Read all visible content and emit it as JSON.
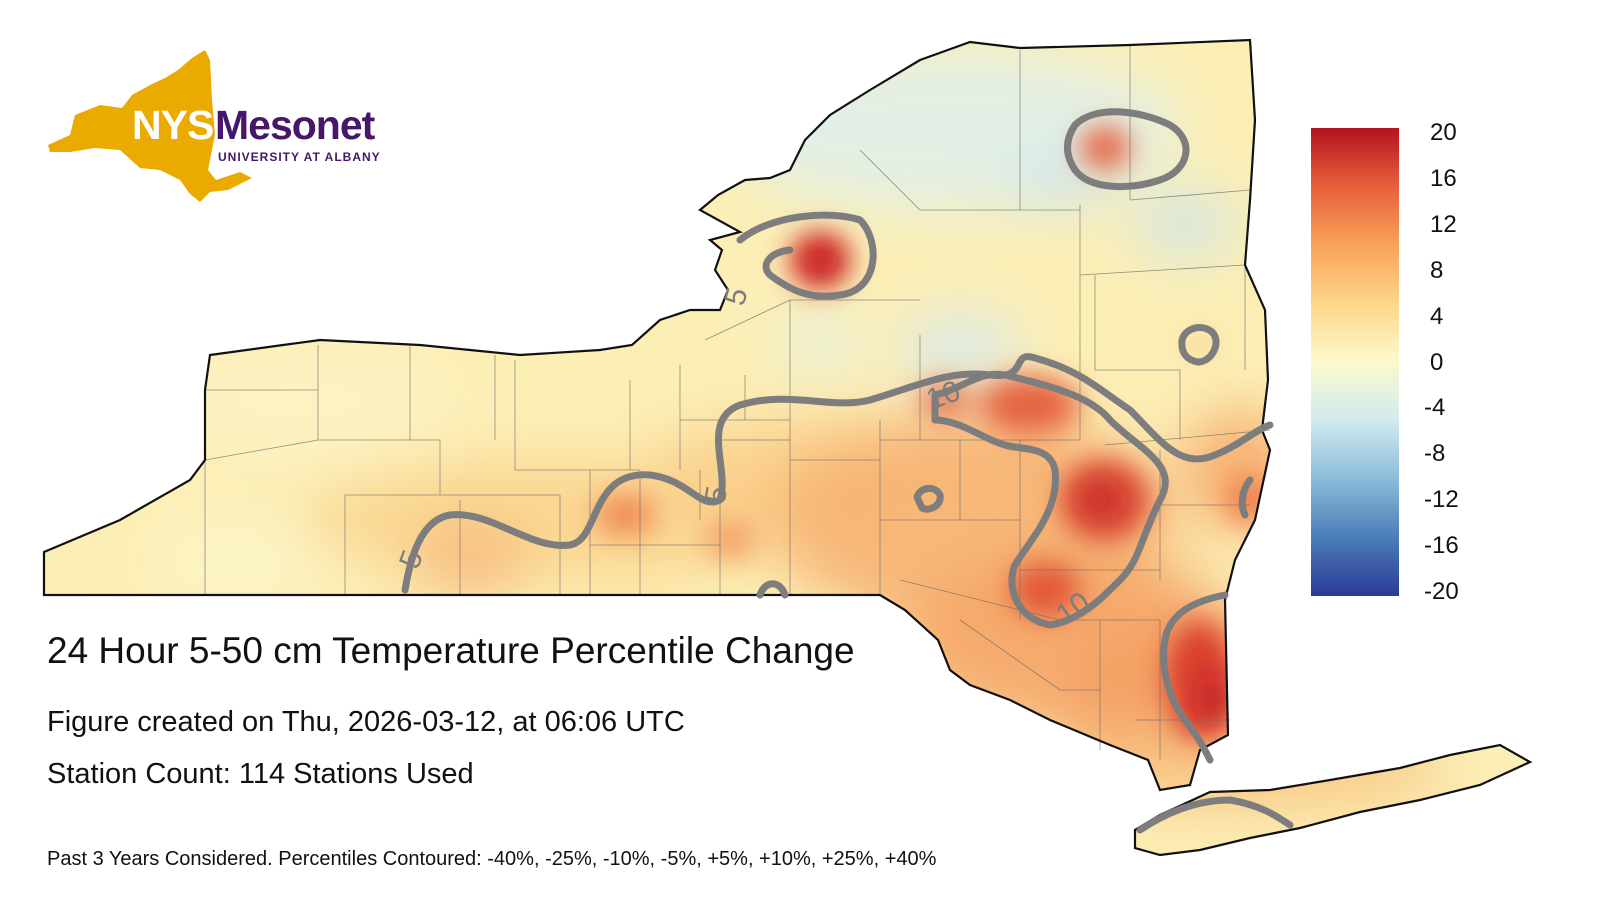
{
  "logo": {
    "nys": "NYS",
    "mesonet": "Mesonet",
    "sub": "UNIVERSITY AT ALBANY",
    "colors": {
      "gold": "#EAAA00",
      "purple": "#46166B"
    }
  },
  "title": "24 Hour 5-50 cm Temperature Percentile Change",
  "created": "Figure created on Thu, 2026-03-12, at 06:06 UTC",
  "station_count": "Station Count: 114 Stations Used",
  "footnote": "Past 3 Years Considered. Percentiles Contoured: -40%, -25%, -10%, -5%, +5%, +10%, +25%, +40%",
  "colorbar": {
    "ticks": [
      "20",
      "16",
      "12",
      "8",
      "4",
      "0",
      "-4",
      "-8",
      "-12",
      "-16",
      "-20"
    ],
    "min": -20,
    "max": 20,
    "colors": [
      "#2B3A96",
      "#4A7DB8",
      "#8BBCDA",
      "#D2EAF0",
      "#FCF9CC",
      "#FDD68A",
      "#F9A25A",
      "#E7603B",
      "#B5121F"
    ]
  },
  "contour_labels": [
    {
      "text": "5"
    },
    {
      "text": "5"
    },
    {
      "text": "5"
    },
    {
      "text": "10"
    },
    {
      "text": "10"
    }
  ]
}
